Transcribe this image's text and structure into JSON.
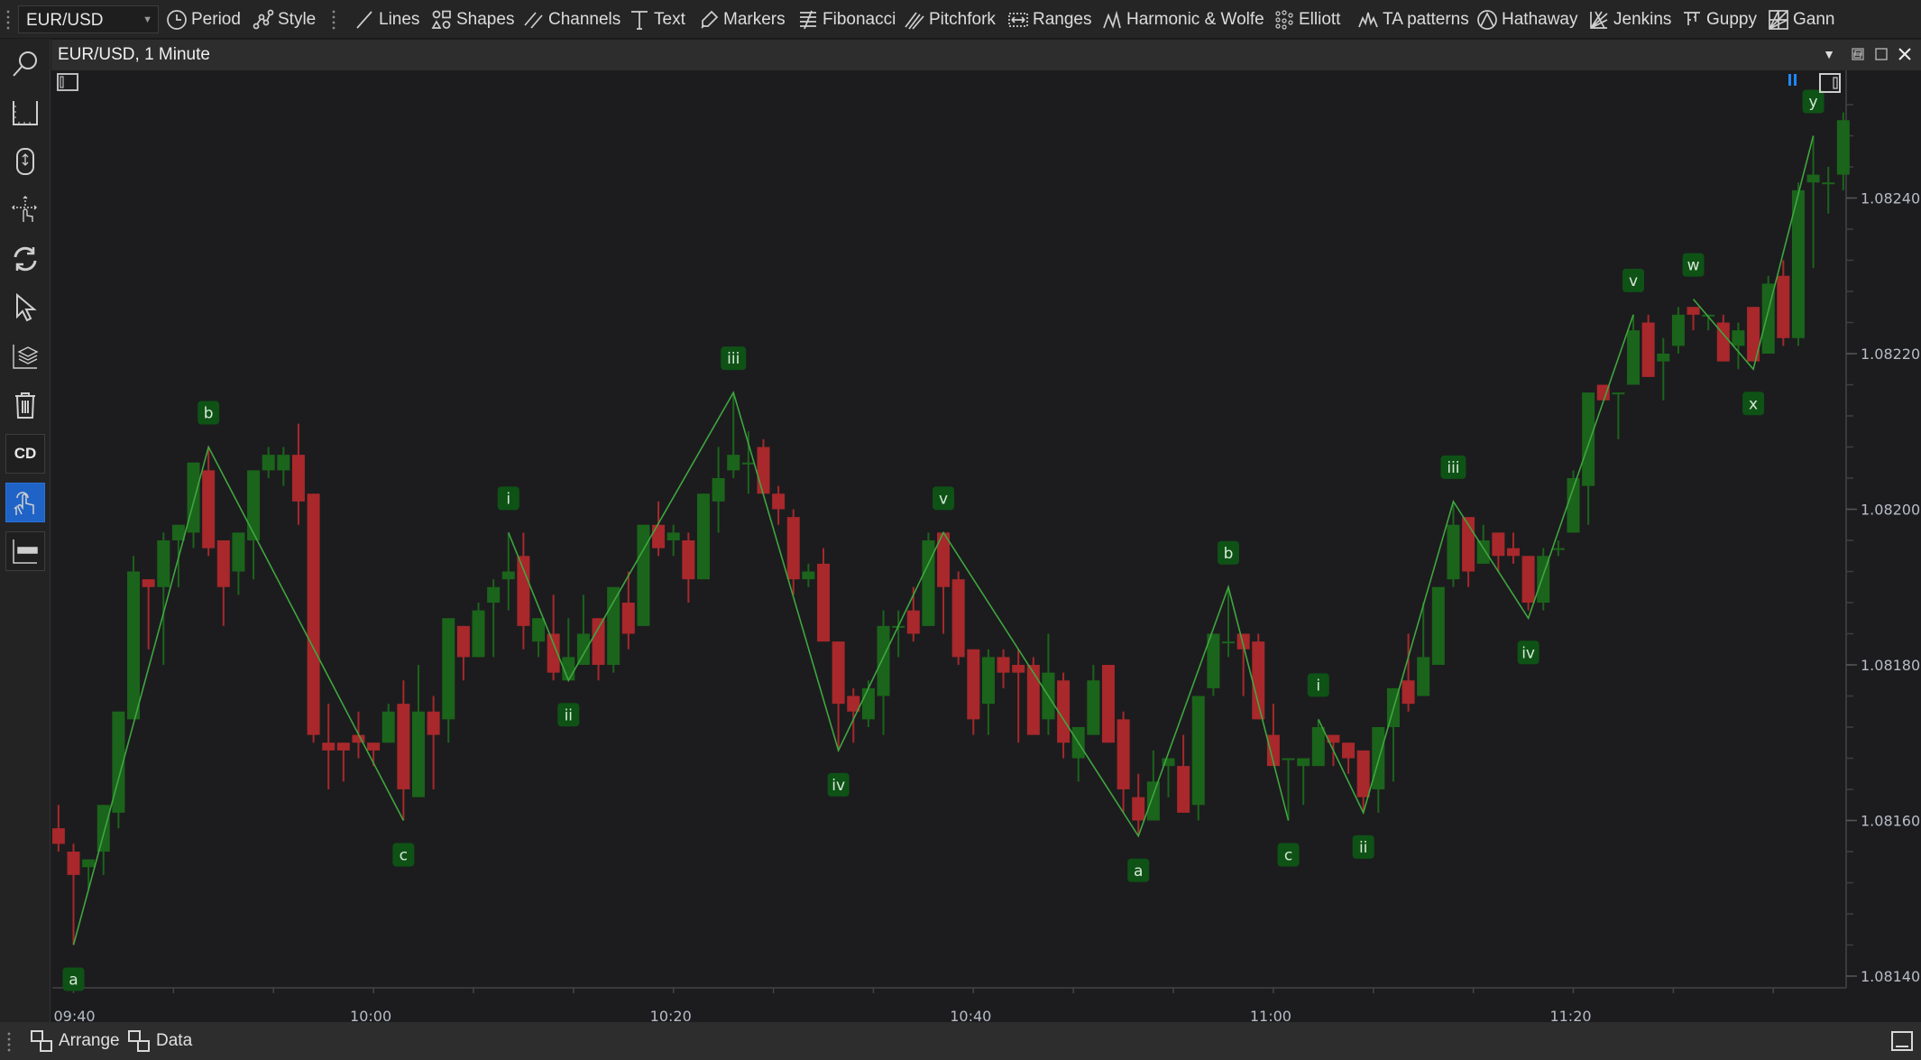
{
  "toolbar": {
    "symbol": "EUR/USD",
    "items": [
      {
        "label": "Period",
        "icon": "clock-icon"
      },
      {
        "label": "Style",
        "icon": "style-nodes-icon"
      },
      {
        "label": "Lines",
        "icon": "line-icon"
      },
      {
        "label": "Shapes",
        "icon": "shapes-icon"
      },
      {
        "label": "Channels",
        "icon": "channels-icon"
      },
      {
        "label": "Text",
        "icon": "text-icon"
      },
      {
        "label": "Markers",
        "icon": "marker-icon"
      },
      {
        "label": "Fibonacci",
        "icon": "fibonacci-icon"
      },
      {
        "label": "Pitchfork",
        "icon": "pitchfork-icon"
      },
      {
        "label": "Ranges",
        "icon": "ranges-icon"
      },
      {
        "label": "Harmonic & Wolfe",
        "icon": "harmonic-icon"
      },
      {
        "label": "Elliott",
        "icon": "elliott-icon"
      },
      {
        "label": "TA patterns",
        "icon": "ta-patterns-icon"
      },
      {
        "label": "Hathaway",
        "icon": "hathaway-icon"
      },
      {
        "label": "Jenkins",
        "icon": "jenkins-icon"
      },
      {
        "label": "Guppy",
        "icon": "guppy-icon"
      },
      {
        "label": "Gann",
        "icon": "gann-icon"
      }
    ]
  },
  "sidebar": {
    "items": [
      {
        "icon": "search-icon"
      },
      {
        "icon": "axis-scale-icon"
      },
      {
        "icon": "mouse-scroll-icon"
      },
      {
        "icon": "pan-hand-icon"
      },
      {
        "icon": "refresh-icon"
      },
      {
        "icon": "cursor-icon"
      },
      {
        "icon": "layers-icon"
      },
      {
        "icon": "trash-icon"
      },
      {
        "icon": "cd-icon",
        "label": "CD"
      },
      {
        "icon": "one-click-hand-icon",
        "active": true
      },
      {
        "icon": "order-bar-icon"
      }
    ]
  },
  "chart": {
    "title": "EUR/USD, 1 Minute",
    "colors": {
      "background": "#1c1c1e",
      "up": "#1b641b",
      "down": "#a8282b",
      "wave_line": "#3fa63f",
      "label_bg": "#0e5216",
      "pause_marker": "#1e88ff"
    }
  },
  "bottombar": {
    "arrange": "Arrange",
    "data": "Data"
  },
  "chart_data": {
    "type": "candlestick",
    "symbol": "EUR/USD",
    "interval": "1 Minute",
    "y_ticks": [
      "1.08140",
      "1.08160",
      "1.08180",
      "1.08200",
      "1.08220",
      "1.08240"
    ],
    "x_ticks": [
      "09:40",
      "10:00",
      "10:20",
      "10:40",
      "11:00",
      "11:20"
    ],
    "ylim": [
      1.08138,
      1.08256
    ],
    "grid": false,
    "candles_fields": [
      "time",
      "open",
      "high",
      "low",
      "close"
    ],
    "candles": [
      [
        "09:39",
        1.08159,
        1.08162,
        1.08156,
        1.08157
      ],
      [
        "09:40",
        1.08156,
        1.08157,
        1.08144,
        1.08153
      ],
      [
        "09:41",
        1.08154,
        1.08155,
        1.08151,
        1.08155
      ],
      [
        "09:42",
        1.08156,
        1.08162,
        1.08153,
        1.08162
      ],
      [
        "09:43",
        1.08161,
        1.08174,
        1.08159,
        1.08174
      ],
      [
        "09:44",
        1.08173,
        1.08194,
        1.08173,
        1.08192
      ],
      [
        "09:45",
        1.08191,
        1.08191,
        1.08182,
        1.0819
      ],
      [
        "09:46",
        1.0819,
        1.08197,
        1.0818,
        1.08196
      ],
      [
        "09:47",
        1.08196,
        1.08198,
        1.0819,
        1.08198
      ],
      [
        "09:48",
        1.08197,
        1.08206,
        1.08195,
        1.08206
      ],
      [
        "09:49",
        1.08205,
        1.08208,
        1.08194,
        1.08195
      ],
      [
        "09:50",
        1.08196,
        1.08196,
        1.08185,
        1.0819
      ],
      [
        "09:51",
        1.08192,
        1.08197,
        1.08189,
        1.08197
      ],
      [
        "09:52",
        1.08196,
        1.08205,
        1.08191,
        1.08205
      ],
      [
        "09:53",
        1.08205,
        1.08208,
        1.08204,
        1.08207
      ],
      [
        "09:54",
        1.08205,
        1.08208,
        1.08203,
        1.08207
      ],
      [
        "09:55",
        1.08207,
        1.08211,
        1.08198,
        1.08201
      ],
      [
        "09:56",
        1.08202,
        1.08202,
        1.0817,
        1.08171
      ],
      [
        "09:57",
        1.0817,
        1.08175,
        1.08164,
        1.08169
      ],
      [
        "09:58",
        1.0817,
        1.0817,
        1.08165,
        1.08169
      ],
      [
        "09:59",
        1.08171,
        1.08174,
        1.08168,
        1.0817
      ],
      [
        "10:00",
        1.0817,
        1.0817,
        1.08167,
        1.08169
      ],
      [
        "10:01",
        1.0817,
        1.08175,
        1.0817,
        1.08174
      ],
      [
        "10:02",
        1.08175,
        1.08178,
        1.0816,
        1.08164
      ],
      [
        "10:03",
        1.08163,
        1.0818,
        1.08163,
        1.08174
      ],
      [
        "10:04",
        1.08174,
        1.08176,
        1.08164,
        1.08171
      ],
      [
        "10:05",
        1.08173,
        1.08186,
        1.0817,
        1.08186
      ],
      [
        "10:06",
        1.08185,
        1.08185,
        1.08178,
        1.08181
      ],
      [
        "10:07",
        1.08181,
        1.08188,
        1.08181,
        1.08187
      ],
      [
        "10:08",
        1.08188,
        1.08191,
        1.08181,
        1.0819
      ],
      [
        "10:09",
        1.08191,
        1.08197,
        1.08187,
        1.08192
      ],
      [
        "10:10",
        1.08194,
        1.08197,
        1.08182,
        1.08185
      ],
      [
        "10:11",
        1.08183,
        1.08186,
        1.08181,
        1.08186
      ],
      [
        "10:12",
        1.08184,
        1.08189,
        1.08178,
        1.08179
      ],
      [
        "10:13",
        1.08178,
        1.08186,
        1.08178,
        1.08181
      ],
      [
        "10:14",
        1.0818,
        1.08189,
        1.0818,
        1.08184
      ],
      [
        "10:15",
        1.08186,
        1.08186,
        1.08178,
        1.0818
      ],
      [
        "10:16",
        1.0818,
        1.0819,
        1.08179,
        1.0819
      ],
      [
        "10:17",
        1.08188,
        1.08192,
        1.08182,
        1.08184
      ],
      [
        "10:18",
        1.08185,
        1.08198,
        1.08185,
        1.08198
      ],
      [
        "10:19",
        1.08198,
        1.08201,
        1.08194,
        1.08195
      ],
      [
        "10:20",
        1.08196,
        1.08198,
        1.08194,
        1.08197
      ],
      [
        "10:21",
        1.08196,
        1.08197,
        1.08188,
        1.08191
      ],
      [
        "10:22",
        1.08191,
        1.08202,
        1.08191,
        1.08202
      ],
      [
        "10:23",
        1.08201,
        1.08208,
        1.08197,
        1.08204
      ],
      [
        "10:24",
        1.08205,
        1.08215,
        1.08204,
        1.08207
      ],
      [
        "10:25",
        1.08206,
        1.0821,
        1.08202,
        1.08206
      ],
      [
        "10:26",
        1.08208,
        1.08209,
        1.08202,
        1.08202
      ],
      [
        "10:27",
        1.08202,
        1.08203,
        1.08198,
        1.082
      ],
      [
        "10:28",
        1.08199,
        1.082,
        1.08189,
        1.08191
      ],
      [
        "10:29",
        1.08191,
        1.08193,
        1.0819,
        1.08192
      ],
      [
        "10:30",
        1.08193,
        1.08195,
        1.08183,
        1.08183
      ],
      [
        "10:31",
        1.08183,
        1.08183,
        1.08169,
        1.08175
      ],
      [
        "10:32",
        1.08176,
        1.08177,
        1.0817,
        1.08174
      ],
      [
        "10:33",
        1.08173,
        1.08178,
        1.08172,
        1.08177
      ],
      [
        "10:34",
        1.08176,
        1.08187,
        1.08171,
        1.08185
      ],
      [
        "10:35",
        1.08185,
        1.08187,
        1.08181,
        1.08185
      ],
      [
        "10:36",
        1.08187,
        1.0819,
        1.08183,
        1.08184
      ],
      [
        "10:37",
        1.08185,
        1.08197,
        1.08185,
        1.08196
      ],
      [
        "10:38",
        1.08197,
        1.08197,
        1.08184,
        1.0819
      ],
      [
        "10:39",
        1.08191,
        1.08192,
        1.0818,
        1.08181
      ],
      [
        "10:40",
        1.08182,
        1.08182,
        1.08171,
        1.08173
      ],
      [
        "10:41",
        1.08175,
        1.08182,
        1.08171,
        1.08181
      ],
      [
        "10:42",
        1.08181,
        1.08182,
        1.08177,
        1.08179
      ],
      [
        "10:43",
        1.0818,
        1.08182,
        1.0817,
        1.08179
      ],
      [
        "10:44",
        1.0818,
        1.08181,
        1.08171,
        1.08171
      ],
      [
        "10:45",
        1.08173,
        1.08184,
        1.08171,
        1.08179
      ],
      [
        "10:46",
        1.08178,
        1.08179,
        1.08168,
        1.0817
      ],
      [
        "10:47",
        1.08168,
        1.08172,
        1.08165,
        1.08172
      ],
      [
        "10:48",
        1.08171,
        1.0818,
        1.08171,
        1.08178
      ],
      [
        "10:49",
        1.0818,
        1.0818,
        1.0817,
        1.0817
      ],
      [
        "10:50",
        1.08173,
        1.08174,
        1.08161,
        1.08164
      ],
      [
        "10:51",
        1.08163,
        1.08166,
        1.08158,
        1.0816
      ],
      [
        "10:52",
        1.0816,
        1.08169,
        1.0816,
        1.08165
      ],
      [
        "10:53",
        1.08167,
        1.08168,
        1.08163,
        1.08168
      ],
      [
        "10:54",
        1.08167,
        1.08171,
        1.08161,
        1.08161
      ],
      [
        "10:55",
        1.08162,
        1.08176,
        1.0816,
        1.08176
      ],
      [
        "10:56",
        1.08177,
        1.08184,
        1.08176,
        1.08184
      ],
      [
        "10:57",
        1.08183,
        1.0819,
        1.08181,
        1.08183
      ],
      [
        "10:58",
        1.08184,
        1.08184,
        1.08176,
        1.08182
      ],
      [
        "10:59",
        1.08183,
        1.08184,
        1.08173,
        1.08173
      ],
      [
        "11:00",
        1.08171,
        1.08175,
        1.08167,
        1.08167
      ],
      [
        "11:01",
        1.08168,
        1.08168,
        1.0816,
        1.08168
      ],
      [
        "11:02",
        1.08167,
        1.08168,
        1.08162,
        1.08168
      ],
      [
        "11:03",
        1.08167,
        1.08173,
        1.08167,
        1.08172
      ],
      [
        "11:04",
        1.08171,
        1.08171,
        1.08167,
        1.0817
      ],
      [
        "11:05",
        1.0817,
        1.0817,
        1.08166,
        1.08168
      ],
      [
        "11:06",
        1.08169,
        1.08169,
        1.08161,
        1.08163
      ],
      [
        "11:07",
        1.08164,
        1.08172,
        1.08161,
        1.08172
      ],
      [
        "11:08",
        1.08172,
        1.08177,
        1.08165,
        1.08177
      ],
      [
        "11:09",
        1.08178,
        1.08184,
        1.08174,
        1.08175
      ],
      [
        "11:10",
        1.08176,
        1.08188,
        1.08176,
        1.08181
      ],
      [
        "11:11",
        1.0818,
        1.0819,
        1.0818,
        1.0819
      ],
      [
        "11:12",
        1.08191,
        1.08201,
        1.0819,
        1.08198
      ],
      [
        "11:13",
        1.08199,
        1.08199,
        1.0819,
        1.08192
      ],
      [
        "11:14",
        1.08193,
        1.08198,
        1.08193,
        1.08196
      ],
      [
        "11:15",
        1.08197,
        1.08197,
        1.08192,
        1.08194
      ],
      [
        "11:16",
        1.08195,
        1.08197,
        1.08193,
        1.08194
      ],
      [
        "11:17",
        1.08194,
        1.08194,
        1.08187,
        1.08188
      ],
      [
        "11:18",
        1.08188,
        1.08195,
        1.08187,
        1.08194
      ],
      [
        "11:19",
        1.08195,
        1.08196,
        1.08194,
        1.08195
      ],
      [
        "11:20",
        1.08197,
        1.08205,
        1.08197,
        1.08204
      ],
      [
        "11:21",
        1.08203,
        1.08215,
        1.08198,
        1.08215
      ],
      [
        "11:22",
        1.08216,
        1.08216,
        1.08214,
        1.08214
      ],
      [
        "11:23",
        1.08215,
        1.08215,
        1.08209,
        1.08215
      ],
      [
        "11:24",
        1.08216,
        1.08225,
        1.08216,
        1.08223
      ],
      [
        "11:25",
        1.08224,
        1.08225,
        1.08217,
        1.08217
      ],
      [
        "11:26",
        1.08219,
        1.08222,
        1.08214,
        1.0822
      ],
      [
        "11:27",
        1.08221,
        1.08226,
        1.0822,
        1.08225
      ],
      [
        "11:28",
        1.08226,
        1.08226,
        1.08223,
        1.08225
      ],
      [
        "11:29",
        1.08225,
        1.08225,
        1.08223,
        1.08225
      ],
      [
        "11:30",
        1.08224,
        1.08225,
        1.08219,
        1.08219
      ],
      [
        "11:31",
        1.08221,
        1.08224,
        1.08218,
        1.08223
      ],
      [
        "11:32",
        1.08226,
        1.08226,
        1.08219,
        1.08219
      ],
      [
        "11:33",
        1.0822,
        1.0823,
        1.0822,
        1.08229
      ],
      [
        "11:34",
        1.0823,
        1.08232,
        1.08221,
        1.08222
      ],
      [
        "11:35",
        1.08222,
        1.08242,
        1.08221,
        1.08241
      ],
      [
        "11:36",
        1.08242,
        1.08248,
        1.08231,
        1.08243
      ],
      [
        "11:37",
        1.08242,
        1.08244,
        1.08238,
        1.08242
      ],
      [
        "11:38",
        1.08243,
        1.08251,
        1.08241,
        1.0825
      ]
    ],
    "elliott_waves": [
      [
        {
          "time": "09:40",
          "price": 1.08144,
          "label": "a",
          "pos": "below"
        },
        {
          "time": "09:49",
          "price": 1.08208,
          "label": "b",
          "pos": "above"
        },
        {
          "time": "10:02",
          "price": 1.0816,
          "label": "c",
          "pos": "below"
        }
      ],
      [
        {
          "time": "10:09",
          "price": 1.08197,
          "label": "i",
          "pos": "above"
        },
        {
          "time": "10:13",
          "price": 1.08178,
          "label": "ii",
          "pos": "below"
        },
        {
          "time": "10:24",
          "price": 1.08215,
          "label": "iii",
          "pos": "above"
        },
        {
          "time": "10:31",
          "price": 1.08169,
          "label": "iv",
          "pos": "below"
        },
        {
          "time": "10:38",
          "price": 1.08197,
          "label": "v",
          "pos": "above"
        },
        {
          "time": "10:51",
          "price": 1.08158,
          "label": "a",
          "pos": "below"
        },
        {
          "time": "10:57",
          "price": 1.0819,
          "label": "b",
          "pos": "above"
        },
        {
          "time": "11:01",
          "price": 1.0816,
          "label": "c",
          "pos": "below"
        }
      ],
      [
        {
          "time": "11:03",
          "price": 1.08173,
          "label": "i",
          "pos": "above"
        },
        {
          "time": "11:06",
          "price": 1.08161,
          "label": "ii",
          "pos": "below"
        },
        {
          "time": "11:12",
          "price": 1.08201,
          "label": "iii",
          "pos": "above"
        },
        {
          "time": "11:17",
          "price": 1.08186,
          "label": "iv",
          "pos": "below"
        },
        {
          "time": "11:24",
          "price": 1.08225,
          "label": "v",
          "pos": "above"
        }
      ],
      [
        {
          "time": "11:28",
          "price": 1.08227,
          "label": "w",
          "pos": "above"
        },
        {
          "time": "11:32",
          "price": 1.08218,
          "label": "x",
          "pos": "below"
        },
        {
          "time": "11:36",
          "price": 1.08248,
          "label": "y",
          "pos": "above"
        }
      ]
    ]
  }
}
